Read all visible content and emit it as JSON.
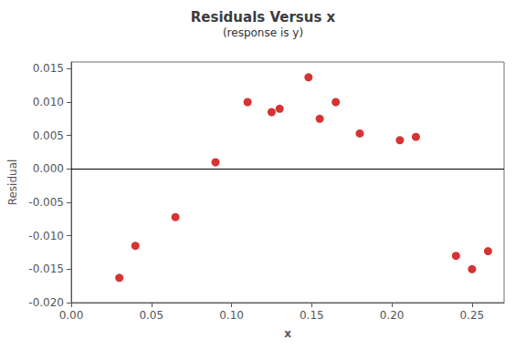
{
  "chart_data": {
    "type": "scatter",
    "title": "Residuals Versus x",
    "subtitle": "(response is y)",
    "xlabel": "x",
    "ylabel": "Residual",
    "x": [
      0.03,
      0.04,
      0.065,
      0.09,
      0.11,
      0.125,
      0.13,
      0.148,
      0.155,
      0.165,
      0.18,
      0.205,
      0.215,
      0.24,
      0.25,
      0.26
    ],
    "values": [
      -0.0163,
      -0.0115,
      -0.0072,
      0.001,
      0.01,
      0.0085,
      0.009,
      0.0137,
      0.0075,
      0.01,
      0.0053,
      0.0043,
      0.0048,
      -0.013,
      -0.015,
      -0.0123
    ],
    "color": "#CC0000",
    "marker": "circle",
    "xlim": [
      0.0,
      0.27
    ],
    "ylim": [
      -0.02,
      0.016
    ],
    "xticks": [
      {
        "value": 0.0,
        "label": "0.00"
      },
      {
        "value": 0.05,
        "label": "0.05"
      },
      {
        "value": 0.1,
        "label": "0.10"
      },
      {
        "value": 0.15,
        "label": "0.15"
      },
      {
        "value": 0.2,
        "label": "0.20"
      },
      {
        "value": 0.25,
        "label": "0.25"
      }
    ],
    "yticks": [
      {
        "value": -0.02,
        "label": "-0.020"
      },
      {
        "value": -0.015,
        "label": "-0.015"
      },
      {
        "value": -0.01,
        "label": "-0.010"
      },
      {
        "value": -0.005,
        "label": "-0.005"
      },
      {
        "value": 0.0,
        "label": "0.000"
      },
      {
        "value": 0.005,
        "label": "0.005"
      },
      {
        "value": 0.01,
        "label": "0.010"
      },
      {
        "value": 0.015,
        "label": "0.015"
      }
    ],
    "hline": {
      "y": 0.0,
      "color": "#000000"
    },
    "grid": false
  }
}
